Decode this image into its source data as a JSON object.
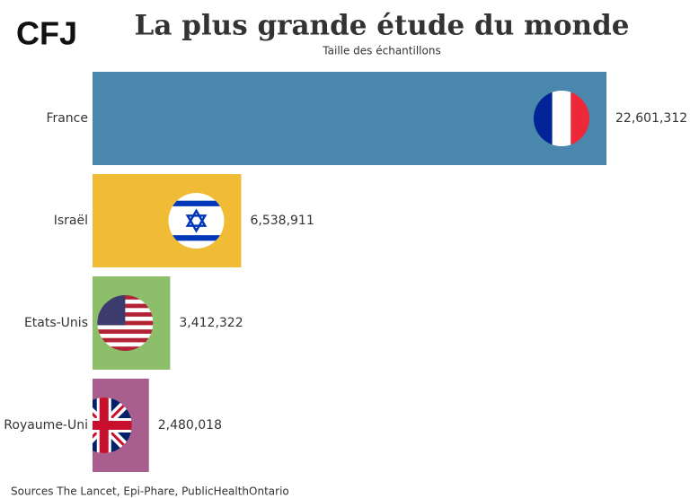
{
  "chart_data": {
    "type": "hbar",
    "logo": "CFJ",
    "title": "La plus grande étude du monde",
    "subtitle": "Taille des échantillons",
    "source": "Sources The Lancet, Epi-Phare, PublicHealthOntario",
    "categories": [
      "France",
      "Israël",
      "Etats-Unis",
      "Royaume-Uni"
    ],
    "values": [
      22601312,
      6538911,
      3412322,
      2480018
    ],
    "value_labels": [
      "22,601,312",
      "6,538,911",
      "3,412,322",
      "2,480,018"
    ],
    "colors": [
      "#4a87ac",
      "#f0bc35",
      "#8dbf6a",
      "#a95f8d"
    ]
  }
}
